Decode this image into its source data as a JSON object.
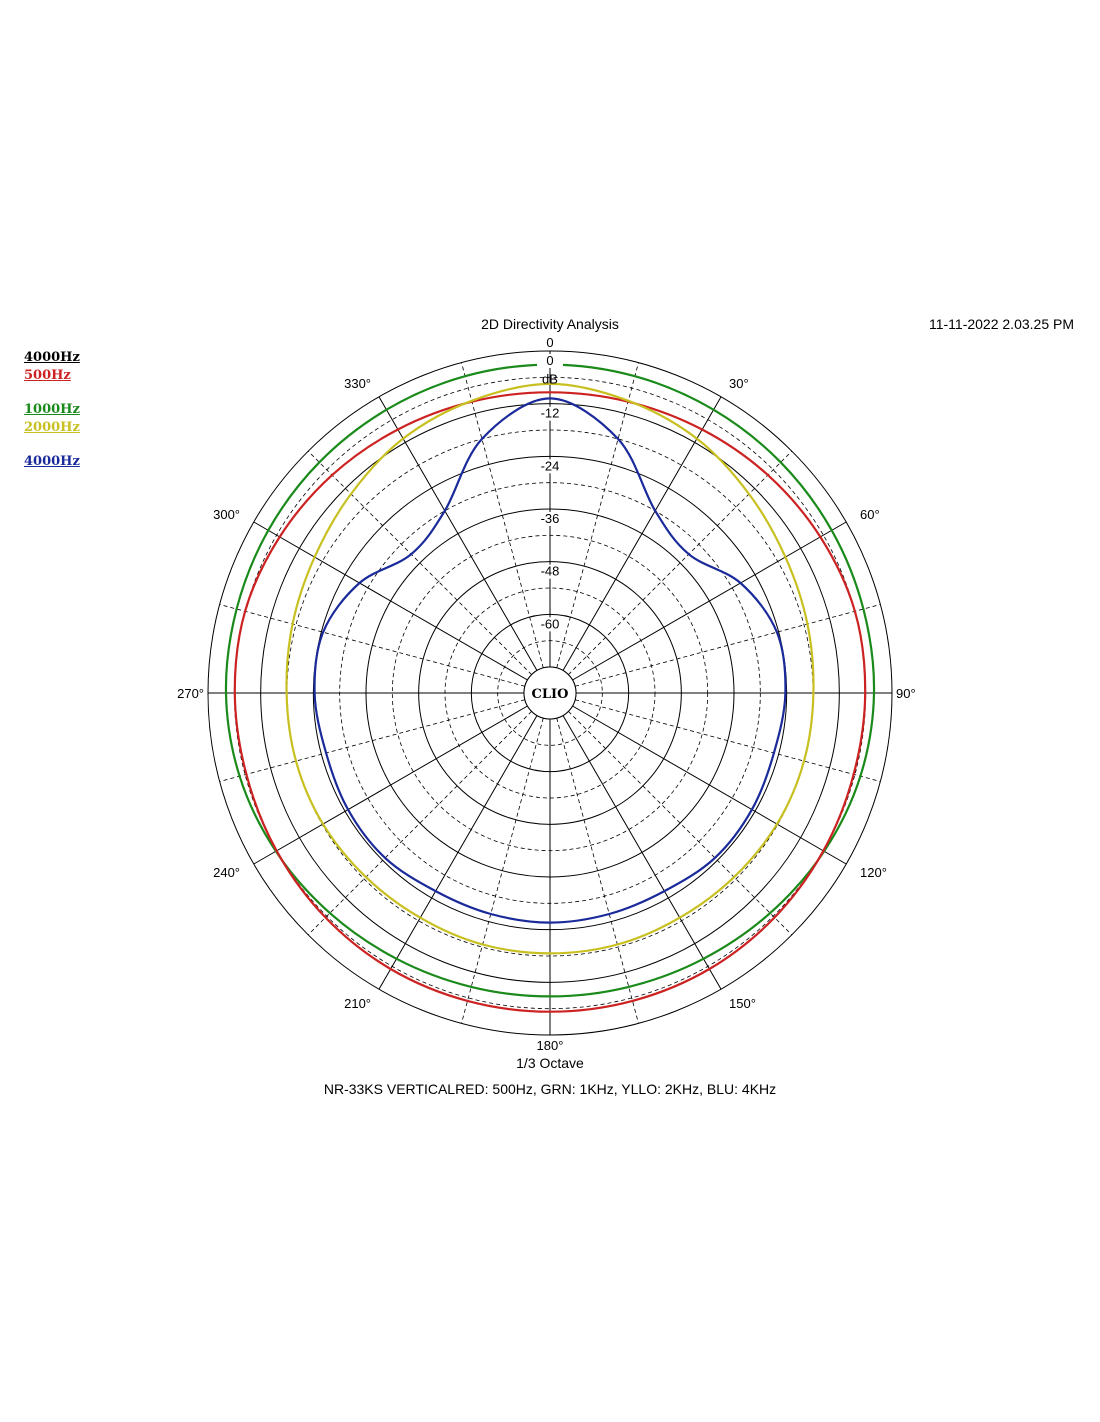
{
  "header": {
    "title": "2D Directivity Analysis",
    "timestamp": "11-11-2022 2.03.25 PM"
  },
  "footer": {
    "x_label": "1/3 Octave",
    "note": "NR-33KS VERTICALRED: 500Hz, GRN: 1KHz, YLLO: 2KHz, BLU: 4KHz"
  },
  "badge": "CLIO",
  "legend": [
    {
      "label": "4000Hz",
      "color": "#000000"
    },
    {
      "label": "500Hz",
      "color": "#cc2222"
    },
    {
      "label": "1000Hz",
      "color": "#1a8a1a"
    },
    {
      "label": "2000Hz",
      "color": "#c8c020"
    },
    {
      "label": "4000Hz",
      "color": "#1a2a9a"
    }
  ],
  "chart_data": {
    "type": "polar",
    "unit": "dB",
    "radial_ticks": [
      "0",
      "-12",
      "-24",
      "-36",
      "-48",
      "-60"
    ],
    "rlim": [
      -72,
      0
    ],
    "angle_ticks": [
      "0",
      "30°",
      "60°",
      "90°",
      "120°",
      "150°",
      "180°",
      "210°",
      "240°",
      "270°",
      "300°",
      "330°"
    ],
    "angles_deg": [
      0,
      15,
      30,
      45,
      60,
      75,
      90,
      105,
      120,
      135,
      150,
      165,
      180,
      195,
      210,
      225,
      240,
      255,
      270,
      285,
      300,
      315,
      330,
      345
    ],
    "series": [
      {
        "name": "500Hz",
        "color": "#cc2222",
        "values": [
          -9.4,
          -9.2,
          -8.6,
          -7.7,
          -6.8,
          -6.0,
          -6.1,
          -6.3,
          -6.0,
          -5.6,
          -5.3,
          -5.3,
          -5.3,
          -5.3,
          -5.3,
          -5.6,
          -6.0,
          -6.3,
          -6.1,
          -6.0,
          -6.8,
          -7.7,
          -8.6,
          -9.2
        ]
      },
      {
        "name": "1000Hz",
        "color": "#1a8a1a",
        "values": [
          -3.1,
          -3.2,
          -3.4,
          -3.6,
          -3.8,
          -4.0,
          -4.1,
          -4.7,
          -5.8,
          -7.0,
          -8.0,
          -8.6,
          -8.8,
          -8.6,
          -8.0,
          -7.0,
          -5.8,
          -4.7,
          -4.1,
          -4.0,
          -3.8,
          -3.6,
          -3.4,
          -3.2
        ]
      },
      {
        "name": "2000Hz",
        "color": "#c8c020",
        "values": [
          -7.5,
          -9.0,
          -11.0,
          -13.8,
          -16.0,
          -17.2,
          -17.9,
          -18.0,
          -18.2,
          -18.6,
          -18.8,
          -18.6,
          -18.6,
          -18.6,
          -18.8,
          -18.6,
          -18.2,
          -18.0,
          -17.9,
          -17.2,
          -16.0,
          -13.8,
          -11.0,
          -9.0
        ]
      },
      {
        "name": "4000Hz",
        "color": "#1a2a9a",
        "values": [
          -10.8,
          -18.0,
          -30.0,
          -33.2,
          -27.8,
          -24.4,
          -24.3,
          -25.1,
          -24.8,
          -24.8,
          -25.8,
          -25.8,
          -25.6,
          -25.8,
          -25.8,
          -24.8,
          -24.8,
          -25.1,
          -24.3,
          -24.4,
          -27.8,
          -33.2,
          -30.0,
          -18.0
        ]
      }
    ]
  }
}
